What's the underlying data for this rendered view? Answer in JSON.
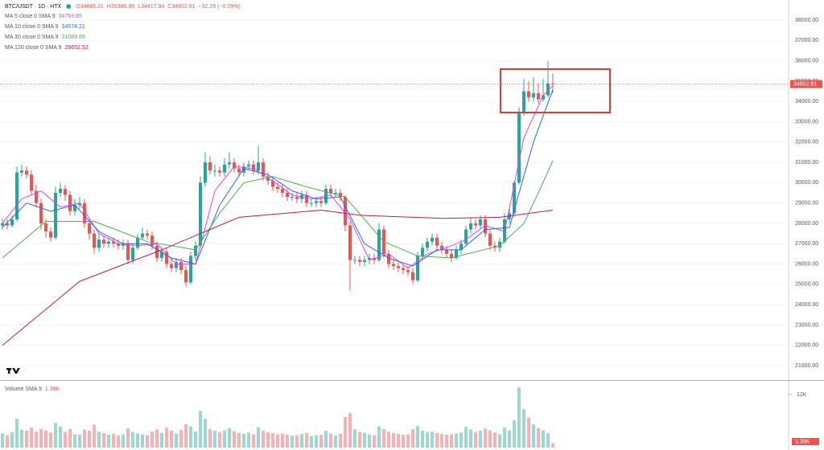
{
  "chart_data": {
    "type": "candlestick",
    "title": "BTC/USDT · 1D · HTX",
    "header_values": [
      "O34885.21",
      "H35380.99",
      "L34417.94",
      "C34852.91",
      "−32.29 (−0.09%)"
    ],
    "up_color": "#26a69a",
    "down_color": "#ef5350",
    "xlim": [
      -0.5,
      162.83
    ],
    "ylim": [
      20290,
      38990
    ],
    "grid": true,
    "yticks": [
      {
        "value": 21000,
        "label": "21000.00"
      },
      {
        "value": 22000,
        "label": "22000.00"
      },
      {
        "value": 23000,
        "label": "23000.00"
      },
      {
        "value": 24000,
        "label": "24000.00"
      },
      {
        "value": 25000,
        "label": "25000.00"
      },
      {
        "value": 26000,
        "label": "26000.00"
      },
      {
        "value": 27000,
        "label": "27000.00"
      },
      {
        "value": 28000,
        "label": "28000.00"
      },
      {
        "value": 29000,
        "label": "29000.00"
      },
      {
        "value": 30000,
        "label": "30000.00"
      },
      {
        "value": 31000,
        "label": "31000.00"
      },
      {
        "value": 32000,
        "label": "32000.00"
      },
      {
        "value": 33000,
        "label": "33000.00"
      },
      {
        "value": 34000,
        "label": "34000.00"
      },
      {
        "value": 35000,
        "label": "35000.00"
      },
      {
        "value": 36000,
        "label": "36000.00"
      },
      {
        "value": 37000,
        "label": "37000.00"
      },
      {
        "value": 38000,
        "label": "38000.00"
      }
    ],
    "open": [
      27900,
      28000,
      27900,
      28200,
      30500,
      30600,
      30400,
      29600,
      29000,
      28000,
      27600,
      27300,
      29500,
      29700,
      29400,
      28600,
      28900,
      29000,
      28000,
      27500,
      26800,
      27200,
      27000,
      27100,
      27000,
      26900,
      27000,
      26200,
      26800,
      27300,
      27500,
      27400,
      26900,
      26300,
      26600,
      26000,
      25800,
      26100,
      25700,
      25100,
      26400,
      26900,
      30000,
      31000,
      30600,
      30600,
      30500,
      30900,
      31000,
      30700,
      30500,
      30800,
      30900,
      30600,
      31000,
      30300,
      30100,
      29800,
      29700,
      29500,
      29300,
      29300,
      29200,
      29400,
      29000,
      29000,
      29100,
      29000,
      29700,
      29500,
      29500,
      29300,
      27900,
      26200,
      26200,
      26100,
      26200,
      26300,
      26200,
      27700,
      26500,
      26000,
      25900,
      25800,
      25700,
      25600,
      25200,
      26400,
      26800,
      27100,
      27300,
      26900,
      26700,
      26500,
      26300,
      26700,
      27000,
      27700,
      28000,
      27900,
      28200,
      27500,
      26900,
      26800,
      27100,
      28200,
      28500,
      30000,
      33500,
      34500,
      34200,
      34400,
      34100,
      34300,
      34885.21
    ],
    "high": [
      28250,
      28200,
      28400,
      30800,
      30900,
      30800,
      30600,
      29900,
      29200,
      28200,
      27800,
      29800,
      30000,
      29900,
      29600,
      29200,
      29300,
      29200,
      28200,
      27700,
      27500,
      27400,
      27300,
      27300,
      27200,
      27200,
      27200,
      27000,
      27500,
      27800,
      27700,
      27600,
      27100,
      26800,
      26800,
      26200,
      26300,
      26300,
      25900,
      26600,
      27100,
      30300,
      31500,
      31300,
      30900,
      30800,
      31200,
      31500,
      31200,
      30900,
      31000,
      31100,
      31100,
      31800,
      31200,
      30500,
      30300,
      30000,
      29900,
      29700,
      29500,
      29500,
      29600,
      29600,
      29200,
      29300,
      29300,
      29900,
      29900,
      29700,
      29700,
      29400,
      28100,
      26400,
      26400,
      26400,
      26500,
      26500,
      28000,
      27900,
      26700,
      26200,
      26100,
      26000,
      25900,
      25800,
      26600,
      27000,
      27300,
      27500,
      27500,
      27100,
      26900,
      26700,
      26900,
      27200,
      27900,
      28300,
      28200,
      28400,
      28400,
      27700,
      27100,
      27300,
      28500,
      28800,
      30100,
      33700,
      35100,
      35000,
      35200,
      34900,
      35100,
      35981,
      35380.99
    ],
    "low": [
      27700,
      27700,
      27800,
      28100,
      30300,
      30200,
      29400,
      28800,
      27700,
      27300,
      27100,
      27200,
      29300,
      29100,
      28400,
      28400,
      28700,
      27800,
      27200,
      26500,
      26600,
      26800,
      26800,
      26800,
      26700,
      26700,
      26000,
      26000,
      26700,
      27200,
      27200,
      26700,
      26100,
      26100,
      25800,
      25600,
      25600,
      25500,
      24900,
      25000,
      26200,
      26800,
      29800,
      30400,
      30300,
      30300,
      30300,
      30700,
      30500,
      30300,
      30300,
      30600,
      30400,
      30400,
      30100,
      29900,
      29600,
      29500,
      29300,
      29100,
      29100,
      29000,
      29000,
      28800,
      28800,
      28800,
      28800,
      28900,
      29300,
      29300,
      29100,
      27600,
      24700,
      26000,
      25900,
      25900,
      26000,
      26000,
      26100,
      26300,
      25800,
      25700,
      25600,
      25500,
      25400,
      25000,
      25100,
      26200,
      26600,
      26900,
      26700,
      26500,
      26300,
      26100,
      26200,
      26500,
      26900,
      27500,
      27700,
      27700,
      27300,
      26700,
      26600,
      26600,
      27000,
      28000,
      28300,
      29900,
      33300,
      34000,
      34000,
      33900,
      34000,
      34200,
      34417.94
    ],
    "close": [
      28000,
      27900,
      28200,
      30500,
      30600,
      30400,
      29600,
      29000,
      28000,
      27600,
      27300,
      29500,
      29700,
      29400,
      28600,
      28900,
      29000,
      28000,
      27500,
      26800,
      27200,
      27000,
      27100,
      27000,
      26900,
      27000,
      26200,
      26800,
      27300,
      27500,
      27400,
      26900,
      26300,
      26600,
      26000,
      25800,
      26100,
      25700,
      25100,
      26400,
      26900,
      30000,
      31000,
      30600,
      30600,
      30500,
      30900,
      31000,
      30700,
      30500,
      30800,
      30900,
      30600,
      31000,
      30300,
      30100,
      29800,
      29700,
      29500,
      29300,
      29300,
      29200,
      29400,
      29000,
      29000,
      29100,
      29000,
      29700,
      29500,
      29500,
      29300,
      27900,
      26200,
      26200,
      26100,
      26200,
      26300,
      26200,
      27700,
      26500,
      26000,
      25900,
      25800,
      25700,
      25600,
      25200,
      26400,
      26800,
      27100,
      27300,
      26900,
      26700,
      26500,
      26300,
      26700,
      27000,
      27700,
      28000,
      27900,
      28200,
      27500,
      26900,
      26800,
      27100,
      28200,
      28500,
      30000,
      33500,
      34500,
      34200,
      34400,
      34100,
      34300,
      34885,
      34852.91
    ],
    "series": [
      {
        "name": "MA 5 close 0 SMA 9",
        "color": "#e040fb",
        "value_label": "34769.85",
        "x": [
          0,
          4,
          8,
          12,
          16,
          20,
          24,
          28,
          32,
          36,
          40,
          44,
          48,
          52,
          56,
          60,
          64,
          68,
          72,
          76,
          80,
          84,
          88,
          92,
          96,
          100,
          104,
          108,
          112,
          114
        ],
        "values": [
          28000,
          29200,
          29600,
          28800,
          29000,
          27500,
          27000,
          26900,
          27000,
          26000,
          26000,
          29600,
          30800,
          30700,
          30100,
          29400,
          29200,
          29400,
          28200,
          26200,
          26500,
          25800,
          26500,
          26800,
          27200,
          27900,
          27600,
          32200,
          34300,
          34769.85
        ]
      },
      {
        "name": "MA 10 close 0 SMA 9",
        "color": "#2962ff",
        "value_label": "34574.21",
        "x": [
          0,
          5,
          10,
          15,
          20,
          25,
          30,
          35,
          40,
          45,
          50,
          55,
          60,
          65,
          70,
          75,
          80,
          85,
          90,
          95,
          100,
          105,
          110,
          114
        ],
        "values": [
          27800,
          29000,
          28600,
          28900,
          27600,
          27000,
          27000,
          26300,
          26000,
          28900,
          30700,
          30400,
          29600,
          29200,
          29300,
          27000,
          26300,
          25900,
          26700,
          26700,
          27700,
          27800,
          32000,
          34574.21
        ]
      },
      {
        "name": "MA 30 close 0 SMA 9",
        "color": "#4caf50",
        "value_label": "31089.89",
        "x": [
          0,
          9,
          19,
          30,
          40,
          45,
          50,
          56,
          63,
          71,
          79,
          86,
          93,
          103,
          108,
          111,
          114
        ],
        "values": [
          26300,
          28100,
          28100,
          27100,
          26700,
          28500,
          30000,
          30300,
          29800,
          29300,
          27100,
          26400,
          26300,
          26900,
          28000,
          29500,
          31089.89
        ]
      },
      {
        "name": "MA 120 close 0 SMA 9",
        "color": "#c2185b",
        "value_label": "28652.52",
        "x": [
          0,
          16,
          33,
          49,
          66,
          74,
          91,
          103,
          114
        ],
        "values": [
          22000,
          25150,
          26700,
          28300,
          28650,
          28400,
          28250,
          28300,
          28652.52
        ]
      }
    ],
    "volume": {
      "title": "Volume SMA 9",
      "sma_label": "1.39K",
      "ylim": [
        0,
        14900
      ],
      "yticks": [
        {
          "value": 12000,
          "label": "12K"
        }
      ],
      "values": [
        3200,
        2800,
        3500,
        6500,
        4000,
        3800,
        4500,
        3600,
        4200,
        3900,
        3400,
        5600,
        4800,
        3500,
        4200,
        3000,
        2900,
        4100,
        3800,
        5200,
        3600,
        3300,
        2900,
        3100,
        2700,
        3000,
        4300,
        3500,
        3200,
        3000,
        2800,
        3600,
        4100,
        3300,
        4500,
        3800,
        3200,
        4000,
        5300,
        4800,
        3600,
        8300,
        6500,
        4200,
        3800,
        3500,
        3900,
        4400,
        3700,
        3300,
        3100,
        3400,
        3000,
        4600,
        3800,
        3500,
        3300,
        3000,
        3200,
        2900,
        2700,
        2800,
        3100,
        3300,
        2600,
        2800,
        2900,
        3800,
        3200,
        2700,
        3100,
        6900,
        7800,
        4100,
        3500,
        3300,
        3000,
        2800,
        4800,
        4200,
        3600,
        3300,
        3100,
        2900,
        3000,
        4200,
        4900,
        3800,
        3500,
        3600,
        3300,
        3100,
        2900,
        3000,
        3200,
        3400,
        4700,
        4100,
        3500,
        3800,
        4300,
        3900,
        3400,
        3000,
        4500,
        3900,
        6200,
        13600,
        8700,
        6800,
        5200,
        4400,
        3900,
        3300,
        1000
      ]
    }
  }
}
